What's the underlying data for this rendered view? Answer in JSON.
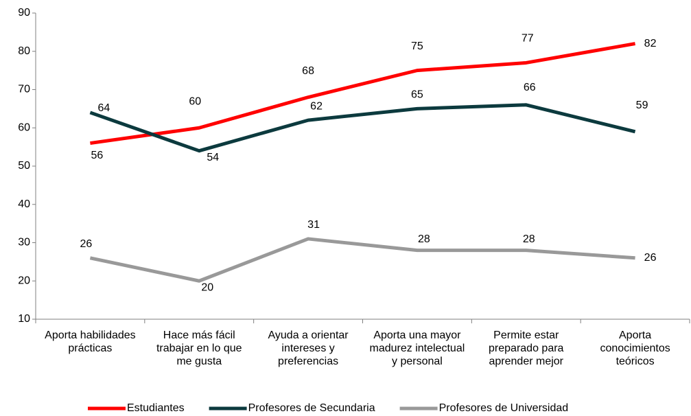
{
  "chart_data": {
    "type": "line",
    "categories": [
      "Aporta habilidades prácticas",
      "Hace más fácil trabajar en lo que me gusta",
      "Ayuda a orientar intereses y preferencias",
      "Aporta una mayor madurez intelectual y personal",
      "Permite estar preparado para aprender mejor",
      "Aporta conocimientos teóricos"
    ],
    "series": [
      {
        "name": "Estudiantes",
        "color": "#ff0000",
        "values": [
          56,
          60,
          68,
          75,
          77,
          82
        ]
      },
      {
        "name": "Profesores de Secundaria",
        "color": "#0c3a3e",
        "values": [
          64,
          54,
          62,
          65,
          66,
          59
        ]
      },
      {
        "name": "Profesores de Universidad",
        "color": "#999999",
        "values": [
          26,
          20,
          31,
          28,
          28,
          26
        ]
      }
    ],
    "ylim": [
      10,
      90
    ],
    "yticks": [
      10,
      20,
      30,
      40,
      50,
      60,
      70,
      80,
      90
    ],
    "grid": false,
    "legend": "bottom"
  }
}
